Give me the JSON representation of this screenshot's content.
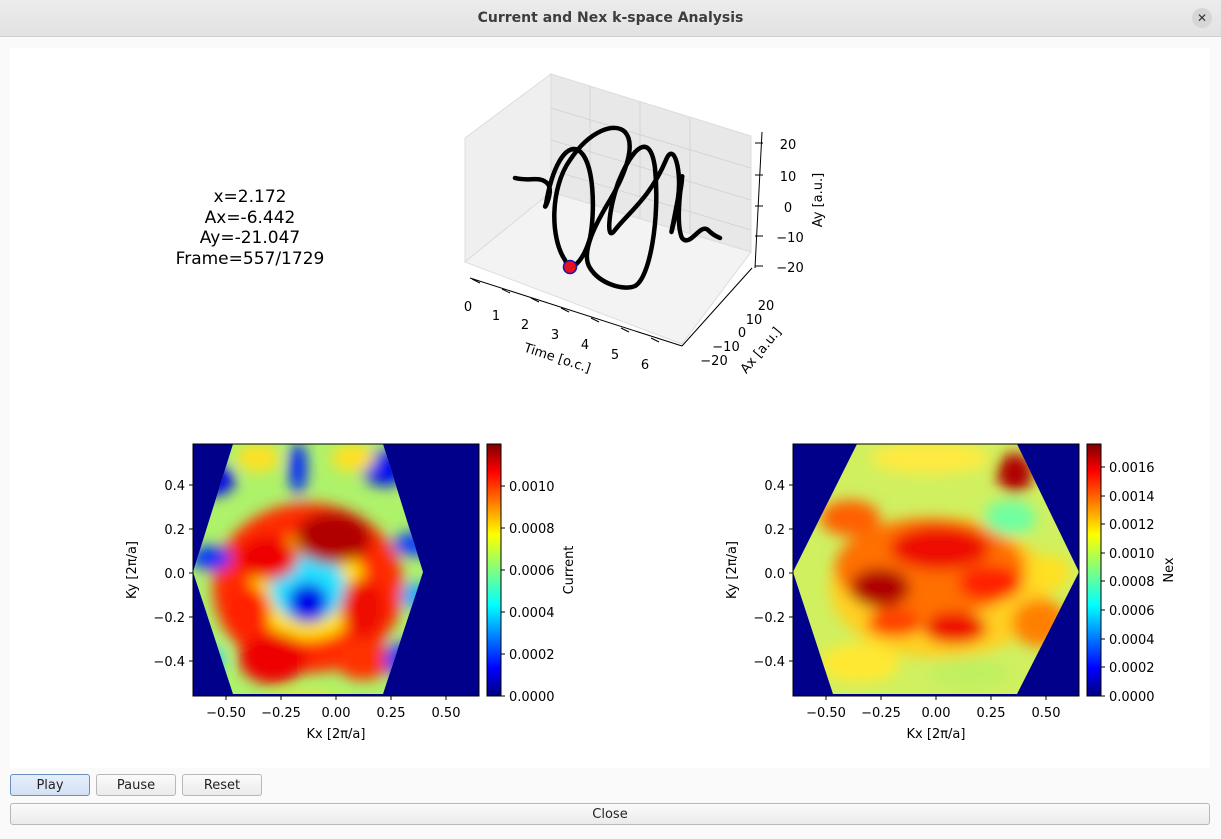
{
  "window": {
    "title": "Current and Nex k-space Analysis",
    "close_glyph": "✕"
  },
  "info": {
    "x": "x=2.172",
    "ax": "Ax=-6.442",
    "ay": "Ay=-21.047",
    "frame": "Frame=557/1729"
  },
  "plot3d": {
    "xlabel": "Time [o.c.]",
    "ylabel": "Ax [a.u.]",
    "zlabel": "Ay [a.u.]",
    "time_ticks": [
      "0",
      "1",
      "2",
      "3",
      "4",
      "5",
      "6"
    ],
    "ax_ticks": [
      "20",
      "10",
      "0",
      "−10",
      "−20"
    ],
    "ay_ticks": [
      "20",
      "10",
      "0",
      "−10",
      "−20"
    ],
    "marker_color": "#e8101a"
  },
  "chart_data": [
    {
      "type": "heatmap",
      "colormap": "jet",
      "xlabel": "Kx [2π/a]",
      "ylabel": "Ky [2π/a]",
      "colorbar_label": "Current",
      "xlim": [
        -0.66,
        0.66
      ],
      "ylim": [
        -0.57,
        0.57
      ],
      "x_ticks": [
        "−0.50",
        "−0.25",
        "0.00",
        "0.25",
        "0.50"
      ],
      "y_ticks": [
        "0.4",
        "0.2",
        "0.0",
        "−0.2",
        "−0.4"
      ],
      "colorbar_ticks": [
        "0.0010",
        "0.0008",
        "0.0006",
        "0.0004",
        "0.0002",
        "0.0000"
      ],
      "colorbar_range": [
        0,
        0.00119
      ]
    },
    {
      "type": "heatmap",
      "colormap": "jet",
      "xlabel": "Kx [2π/a]",
      "ylabel": "Ky [2π/a]",
      "colorbar_label": "Nex",
      "xlim": [
        -0.66,
        0.66
      ],
      "ylim": [
        -0.57,
        0.57
      ],
      "x_ticks": [
        "−0.50",
        "−0.25",
        "0.00",
        "0.25",
        "0.50"
      ],
      "y_ticks": [
        "0.4",
        "0.2",
        "0.0",
        "−0.2",
        "−0.4"
      ],
      "colorbar_ticks": [
        "0.0016",
        "0.0014",
        "0.0012",
        "0.0010",
        "0.0008",
        "0.0006",
        "0.0004",
        "0.0002",
        "0.0000"
      ],
      "colorbar_range": [
        0,
        0.00176
      ]
    }
  ],
  "buttons": {
    "play": "Play",
    "pause": "Pause",
    "reset": "Reset",
    "close": "Close"
  }
}
